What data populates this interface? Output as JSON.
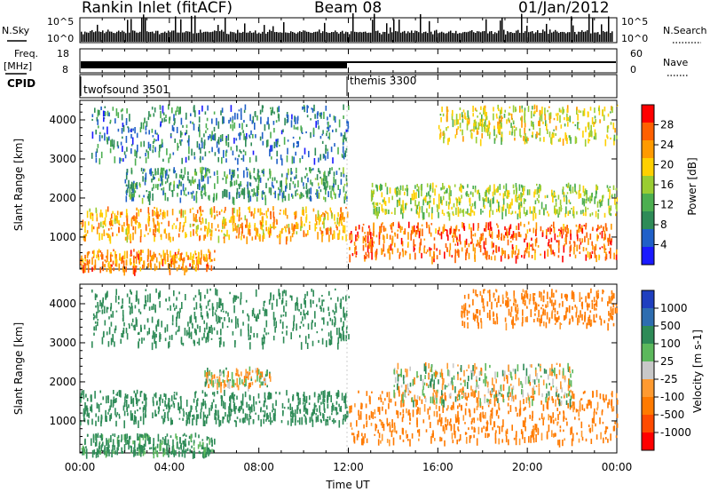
{
  "header": {
    "station": "Rankin Inlet (fitACF)",
    "beam": "Beam 08",
    "date": "01/Jan/2012"
  },
  "top_panel": {
    "nsky_label": "N.Sky",
    "nsearch_label": "N.Search",
    "freq_label": "Freq.",
    "freq_unit": "[MHz]",
    "nave_label": "Nave",
    "cpid_label": "CPID",
    "noise_ticks": [
      "10^5",
      "10^0"
    ],
    "freq_ticks": [
      "18",
      "8"
    ],
    "nave_ticks": [
      "60",
      "0"
    ],
    "modes": [
      {
        "name": "twofsound 3501",
        "start_hour": 0
      },
      {
        "name": "themis 3300",
        "start_hour": 12
      }
    ]
  },
  "x_axis": {
    "title": "Time UT",
    "ticks": [
      "00:00",
      "04:00",
      "08:00",
      "12:00",
      "16:00",
      "20:00",
      "00:00"
    ]
  },
  "y_axis": {
    "title": "Slant Range [km]",
    "ticks": [
      "1000",
      "2000",
      "3000",
      "4000"
    ]
  },
  "power_colorbar": {
    "label": "Power [dB]",
    "ticks": [
      "4",
      "8",
      "12",
      "16",
      "20",
      "24",
      "28"
    ],
    "colors": [
      "#1a1aff",
      "#2060c8",
      "#2e8b57",
      "#4caf50",
      "#9acd32",
      "#ffd000",
      "#ff9a00",
      "#ff6000",
      "#ff0000"
    ]
  },
  "velocity_colorbar": {
    "label": "Velocity [m s-1]",
    "ticks": [
      "1000",
      "500",
      "100",
      "25",
      "-25",
      "-100",
      "-500",
      "-1000"
    ],
    "colors": [
      "#1f3fbf",
      "#2e6db0",
      "#2e8b57",
      "#5cb85c",
      "#c8c8c8",
      "#ff9a30",
      "#ff7a00",
      "#ff4a00",
      "#ff0000"
    ]
  },
  "chart_data": [
    {
      "type": "heatmap",
      "title": "Power",
      "xlabel": "Time UT",
      "ylabel": "Slant Range [km]",
      "xlim_hours": [
        0,
        24
      ],
      "ylim_km": [
        180,
        4500
      ],
      "colorbar": "Power [dB]",
      "bands": [
        {
          "t0": 0.0,
          "t1": 12.0,
          "r0": 1000,
          "r1": 1800,
          "value_db": 22
        },
        {
          "t0": 12.0,
          "t1": 24.0,
          "r0": 500,
          "r1": 1400,
          "value_db": 26
        },
        {
          "t0": 0.0,
          "t1": 6.0,
          "r0": 200,
          "r1": 700,
          "value_db": 24
        },
        {
          "t0": 2.0,
          "t1": 12.0,
          "r0": 2000,
          "r1": 2800,
          "value_db": 10
        },
        {
          "t0": 0.5,
          "t1": 12.0,
          "r0": 3000,
          "r1": 4400,
          "value_db": 8
        },
        {
          "t0": 13.0,
          "t1": 24.0,
          "r0": 1600,
          "r1": 2400,
          "value_db": 16
        },
        {
          "t0": 16.0,
          "t1": 24.0,
          "r0": 3500,
          "r1": 4400,
          "value_db": 18
        }
      ]
    },
    {
      "type": "heatmap",
      "title": "Velocity",
      "xlabel": "Time UT",
      "ylabel": "Slant Range [km]",
      "xlim_hours": [
        0,
        24
      ],
      "ylim_km": [
        180,
        4500
      ],
      "colorbar": "Velocity [m s-1]",
      "bands": [
        {
          "t0": 0.0,
          "t1": 12.0,
          "r0": 1000,
          "r1": 1800,
          "value_ms": 300
        },
        {
          "t0": 12.0,
          "t1": 24.0,
          "r0": 500,
          "r1": 1800,
          "value_ms": -200
        },
        {
          "t0": 0.0,
          "t1": 6.0,
          "r0": 200,
          "r1": 700,
          "value_ms": 200
        },
        {
          "t0": 5.5,
          "t1": 8.5,
          "r0": 1900,
          "r1": 2400,
          "value_ms": 0
        },
        {
          "t0": 14.0,
          "t1": 22.0,
          "r0": 1500,
          "r1": 2500,
          "value_ms": 0
        },
        {
          "t0": 0.5,
          "t1": 12.0,
          "r0": 3000,
          "r1": 4400,
          "value_ms": 300
        },
        {
          "t0": 17.0,
          "t1": 24.0,
          "r0": 3500,
          "r1": 4400,
          "value_ms": -200
        }
      ]
    }
  ]
}
